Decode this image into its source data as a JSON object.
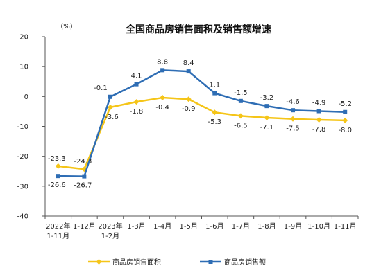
{
  "chart_data": {
    "type": "line",
    "title": "全国商品房销售面积及销售额增速",
    "unit": "(%)",
    "categories": [
      "2022年1-11月",
      "1-12月",
      "2023年1-2月",
      "1-3月",
      "1-4月",
      "1-5月",
      "1-6月",
      "1-7月",
      "1-8月",
      "1-9月",
      "1-10月",
      "1-11月"
    ],
    "category_lines": [
      [
        "2022年",
        "1-11月"
      ],
      [
        "1-12月"
      ],
      [
        "2023年",
        "1-2月"
      ],
      [
        "1-3月"
      ],
      [
        "1-4月"
      ],
      [
        "1-5月"
      ],
      [
        "1-6月"
      ],
      [
        "1-7月"
      ],
      [
        "1-8月"
      ],
      [
        "1-9月"
      ],
      [
        "1-10月"
      ],
      [
        "1-11月"
      ]
    ],
    "ylim": [
      -40,
      20
    ],
    "yticks": [
      20,
      10,
      0,
      -10,
      -20,
      -30,
      -40
    ],
    "grid": false,
    "legend_position": "bottom",
    "series": [
      {
        "name": "商品房销售面积",
        "color": "#f5c518",
        "values": [
          -23.3,
          -24.3,
          -3.6,
          -1.8,
          -0.4,
          -0.9,
          -5.3,
          -6.5,
          -7.1,
          -7.5,
          -7.8,
          -8.0
        ],
        "labels": [
          "-23.3",
          "-24.3",
          "-3.6",
          "-1.8",
          "-0.4",
          "-0.9",
          "-5.3",
          "-6.5",
          "-7.1",
          "-7.5",
          "-7.8",
          "-8.0"
        ]
      },
      {
        "name": "商品房销售额",
        "color": "#2e6db4",
        "values": [
          -26.6,
          -26.7,
          -0.1,
          4.1,
          8.8,
          8.4,
          1.1,
          -1.5,
          -3.2,
          -4.6,
          -4.9,
          -5.2
        ],
        "labels": [
          "-26.6",
          "-26.7",
          "-0.1",
          "4.1",
          "8.8",
          "8.4",
          "1.1",
          "-1.5",
          "-3.2",
          "-4.6",
          "-4.9",
          "-5.2"
        ]
      }
    ]
  }
}
